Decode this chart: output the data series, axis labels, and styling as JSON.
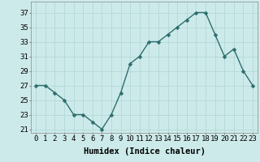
{
  "x": [
    0,
    1,
    2,
    3,
    4,
    5,
    6,
    7,
    8,
    9,
    10,
    11,
    12,
    13,
    14,
    15,
    16,
    17,
    18,
    19,
    20,
    21,
    22,
    23
  ],
  "y": [
    27,
    27,
    26,
    25,
    23,
    23,
    22,
    21,
    23,
    26,
    30,
    31,
    33,
    33,
    34,
    35,
    36,
    37,
    37,
    34,
    31,
    32,
    29,
    27
  ],
  "line_color": "#2d6e6e",
  "marker_color": "#2d6e6e",
  "bg_color": "#cdeaea",
  "grid_color": "#b0d4d4",
  "xlabel": "Humidex (Indice chaleur)",
  "ylabel_ticks": [
    21,
    23,
    25,
    27,
    29,
    31,
    33,
    35,
    37
  ],
  "ylim": [
    20.5,
    38.5
  ],
  "xlim": [
    -0.5,
    23.5
  ],
  "xtick_labels": [
    "0",
    "1",
    "2",
    "3",
    "4",
    "5",
    "6",
    "7",
    "8",
    "9",
    "10",
    "11",
    "12",
    "13",
    "14",
    "15",
    "16",
    "17",
    "18",
    "19",
    "20",
    "21",
    "22",
    "23"
  ],
  "xlabel_fontsize": 7.5,
  "tick_fontsize": 6.5,
  "marker_size": 2.5,
  "line_width": 1.0
}
